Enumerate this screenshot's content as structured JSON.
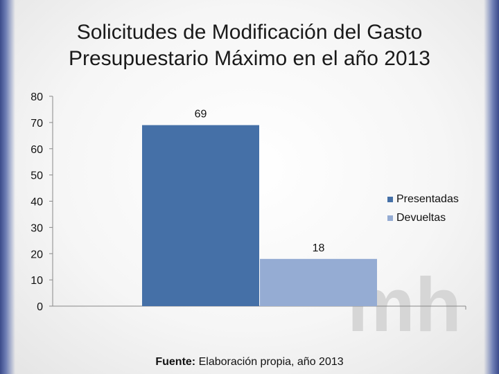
{
  "title_line1": "Solicitudes de Modificación del Gasto",
  "title_line2": "Presupuestario Máximo en el año 2013",
  "source_label": "Fuente:",
  "source_text": "Elaboración propia, año 2013",
  "watermark": "mh",
  "colors": {
    "presentadas": "#4570a7",
    "devueltas": "#95acd3",
    "frame": "#4a5a9a"
  },
  "chart_data": {
    "type": "bar",
    "categories": [
      ""
    ],
    "series": [
      {
        "name": "Presentadas",
        "values": [
          69
        ]
      },
      {
        "name": "Devueltas",
        "values": [
          18
        ]
      }
    ],
    "data_labels": [
      "69",
      "18"
    ],
    "ylim": [
      0,
      80
    ],
    "yticks": [
      0,
      10,
      20,
      30,
      40,
      50,
      60,
      70,
      80
    ],
    "grid": false,
    "legend_position": "right"
  }
}
